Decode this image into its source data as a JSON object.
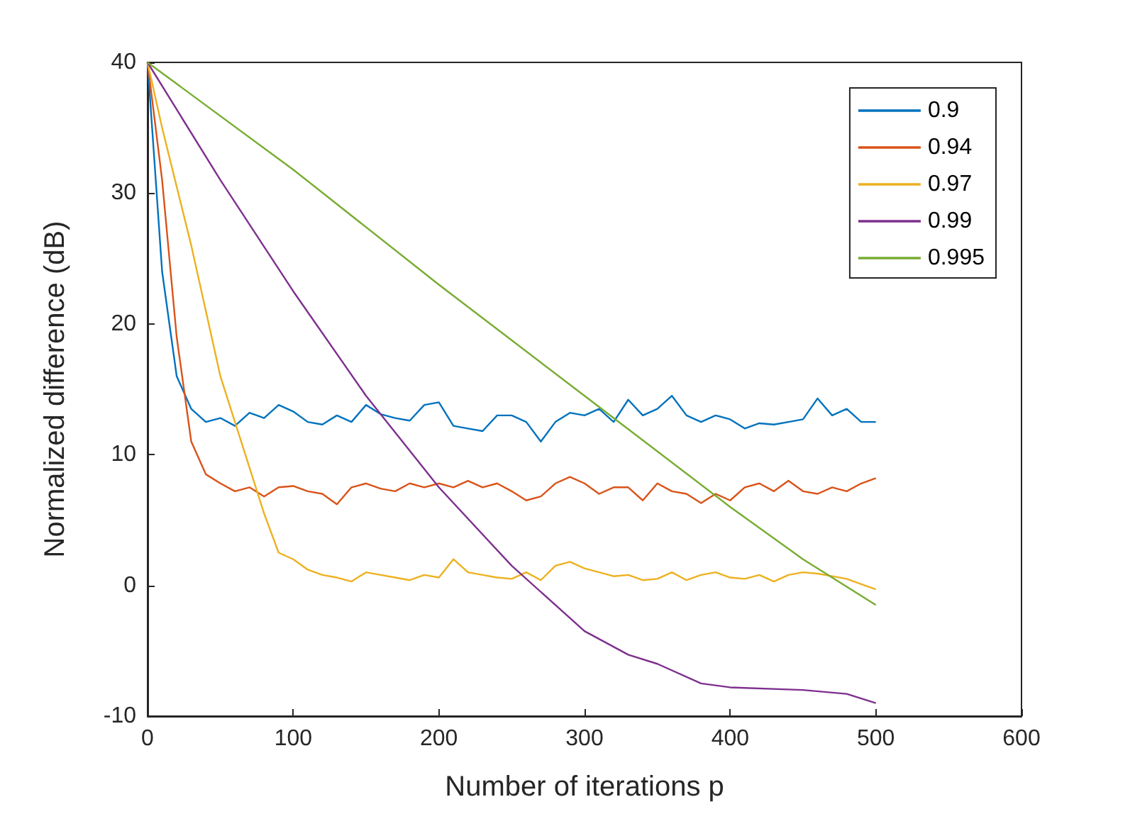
{
  "chart_data": {
    "type": "line",
    "xlabel": "Number of iterations p",
    "ylabel": "Normalized difference (dB)",
    "xlim": [
      0,
      600
    ],
    "xticks": [
      0,
      100,
      200,
      300,
      400,
      500,
      600
    ],
    "ylim": [
      -10,
      40
    ],
    "yticks": [
      -10,
      0,
      10,
      20,
      30,
      40
    ],
    "grid": false,
    "legend": "top right",
    "marker": "none",
    "line_style": "solid",
    "x": [
      0,
      10,
      20,
      30,
      40,
      50,
      60,
      70,
      80,
      90,
      100,
      110,
      120,
      130,
      140,
      150,
      160,
      170,
      180,
      190,
      200,
      210,
      220,
      230,
      240,
      250,
      260,
      270,
      280,
      290,
      300,
      310,
      320,
      330,
      340,
      350,
      360,
      370,
      380,
      390,
      400,
      410,
      420,
      430,
      440,
      450,
      460,
      470,
      480,
      490,
      500
    ],
    "series": [
      {
        "name": "0.9",
        "color": "#0072bd",
        "values": [
          40,
          24,
          16,
          13.5,
          12.5,
          12.8,
          12.2,
          13.2,
          12.8,
          13.8,
          13.3,
          12.5,
          12.3,
          13,
          12.5,
          13.8,
          13.1,
          12.8,
          12.6,
          13.8,
          14,
          12.2,
          12,
          11.8,
          13,
          13,
          12.5,
          11,
          12.5,
          13.2,
          13,
          13.5,
          12.5,
          14.2,
          13,
          13.5,
          14.5,
          13,
          12.5,
          13,
          12.7,
          12,
          12.4,
          12.3,
          12.5,
          12.7,
          14.3,
          13,
          13.5,
          12.5,
          12.5
        ]
      },
      {
        "name": "0.94",
        "color": "#d95319",
        "values": [
          40,
          31,
          19,
          11,
          8.5,
          7.8,
          7.2,
          7.5,
          6.8,
          7.5,
          7.6,
          7.2,
          7,
          6.2,
          7.5,
          7.8,
          7.4,
          7.2,
          7.8,
          7.5,
          7.8,
          7.5,
          8,
          7.5,
          7.8,
          7.2,
          6.5,
          6.8,
          7.8,
          8.3,
          7.8,
          7,
          7.5,
          7.5,
          6.5,
          7.8,
          7.2,
          7,
          6.3,
          7,
          6.5,
          7.5,
          7.8,
          7.2,
          8,
          7.2,
          7,
          7.5,
          7.2,
          7.8,
          8.2
        ]
      },
      {
        "name": "0.97",
        "color": "#edb120",
        "values": [
          40,
          35,
          30.5,
          26,
          21,
          16,
          12.5,
          9,
          5.5,
          2.5,
          2,
          1.2,
          0.8,
          0.6,
          0.3,
          1,
          0.8,
          0.6,
          0.4,
          0.8,
          0.6,
          2,
          1,
          0.8,
          0.6,
          0.5,
          1,
          0.4,
          1.5,
          1.8,
          1.3,
          1,
          0.7,
          0.8,
          0.4,
          0.5,
          1,
          0.4,
          0.8,
          1,
          0.6,
          0.5,
          0.8,
          0.3,
          0.8,
          1,
          0.9,
          0.7,
          0.5,
          0.1,
          -0.3
        ]
      },
      {
        "name": "0.99",
        "color": "#7e2f8e",
        "x": [
          0,
          50,
          100,
          150,
          200,
          250,
          300,
          330,
          350,
          380,
          400,
          450,
          480,
          500
        ],
        "values": [
          40,
          31,
          22.5,
          14.5,
          7.5,
          1.5,
          -3.5,
          -5.3,
          -6,
          -7.5,
          -7.8,
          -8,
          -8.3,
          -9
        ]
      },
      {
        "name": "0.995",
        "color": "#77ac30",
        "x": [
          0,
          100,
          200,
          300,
          400,
          450,
          500
        ],
        "values": [
          40,
          31.8,
          23,
          14.5,
          6,
          2,
          -1.5
        ]
      }
    ]
  }
}
